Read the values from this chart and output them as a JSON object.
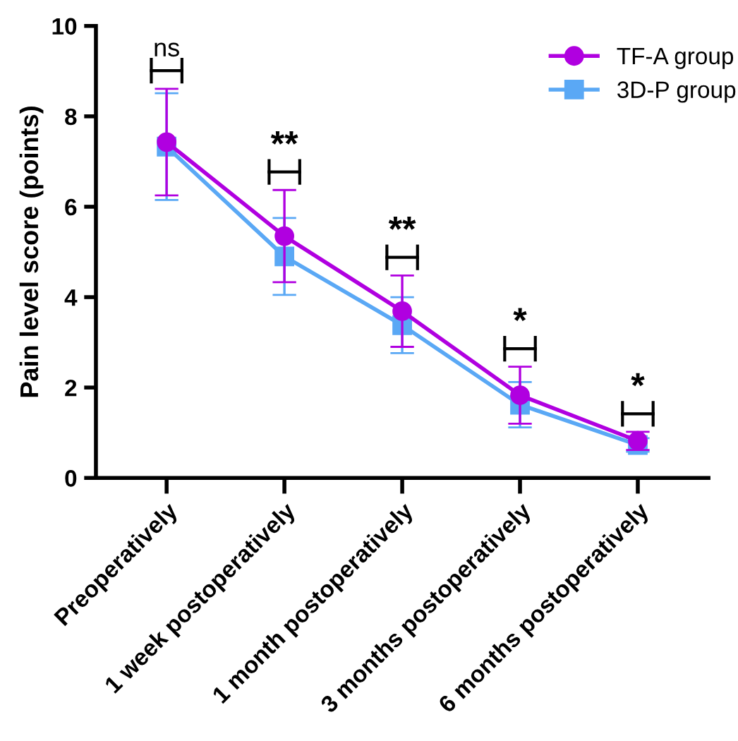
{
  "chart_data": {
    "type": "line",
    "ylabel": "Pain level score (points)",
    "categories": [
      "Preoperatively",
      "1 week postoperatively",
      "1 month postoperatively",
      "3 months postoperatively",
      "6 months postoperatively"
    ],
    "series": [
      {
        "name": "TF-A group",
        "color": "#b000e0",
        "marker": "circle",
        "values": [
          7.43,
          5.35,
          3.69,
          1.83,
          0.82
        ],
        "errors": [
          1.18,
          1.02,
          0.79,
          0.63,
          0.2
        ]
      },
      {
        "name": "3D-P group",
        "color": "#5aa8f5",
        "marker": "square",
        "values": [
          7.33,
          4.9,
          3.38,
          1.62,
          0.73
        ],
        "errors": [
          1.18,
          0.85,
          0.62,
          0.5,
          0.15
        ]
      }
    ],
    "ylim": [
      0,
      10
    ],
    "yticks": [
      0,
      2,
      4,
      6,
      8,
      10
    ],
    "grid": false,
    "legend": "top right",
    "line_style": "solid",
    "annotations": [
      "ns",
      "**",
      "**",
      "*",
      "*"
    ]
  }
}
